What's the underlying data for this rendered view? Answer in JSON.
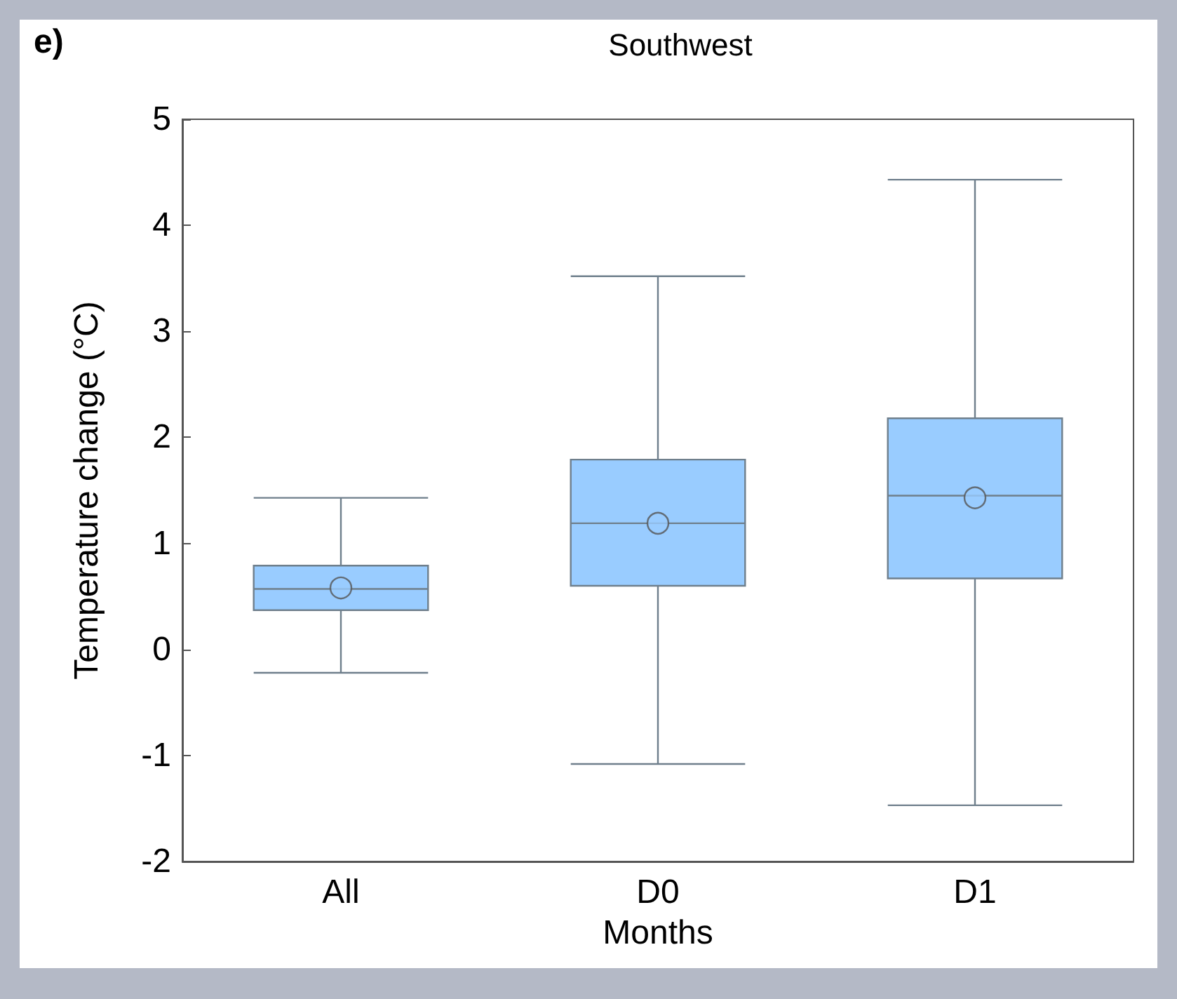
{
  "chart_data": {
    "type": "box",
    "title": "Southwest",
    "xlabel": "Months",
    "ylabel": "Temperature change (°C)",
    "annotations": [
      "e)"
    ],
    "categories": [
      "All",
      "D0",
      "D1"
    ],
    "color": "#99ccff",
    "boxes": [
      {
        "low": -0.22,
        "q1": 0.37,
        "median": 0.57,
        "q3": 0.79,
        "high": 1.43,
        "mean": 0.58
      },
      {
        "low": -1.08,
        "q1": 0.6,
        "median": 1.19,
        "q3": 1.79,
        "high": 3.52,
        "mean": 1.19
      },
      {
        "low": -1.47,
        "q1": 0.67,
        "median": 1.45,
        "q3": 2.18,
        "high": 4.43,
        "mean": 1.43
      }
    ],
    "ylim": [
      -2,
      5
    ],
    "yticks": [
      -2,
      -1,
      0,
      1,
      2,
      3,
      4,
      5
    ],
    "grid": false,
    "marker": "circle"
  }
}
